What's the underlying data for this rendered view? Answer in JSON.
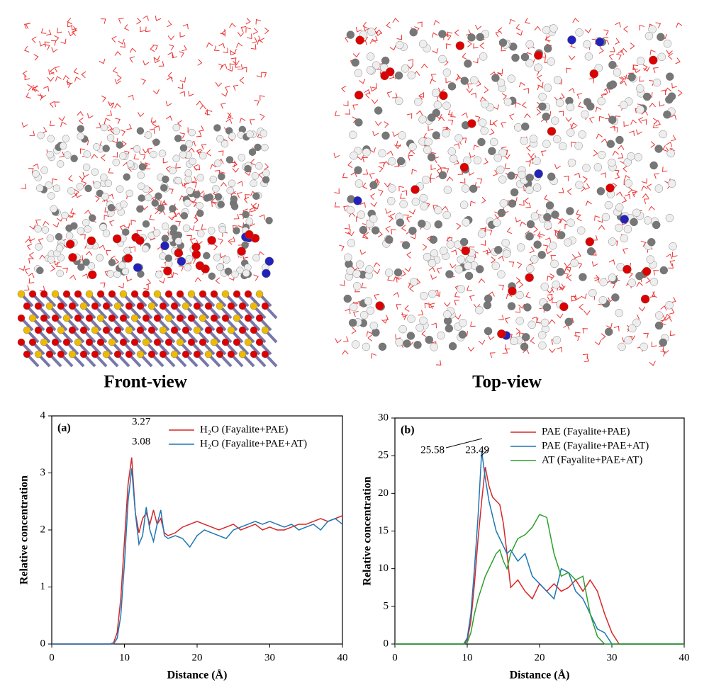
{
  "views": [
    "Front-view",
    "Top-view"
  ],
  "chart_data": [
    {
      "type": "line",
      "panel_label": "(a)",
      "xlabel": "Distance (Å)",
      "ylabel": "Relative concentration",
      "xlim": [
        0,
        40
      ],
      "xticks": [
        0,
        10,
        20,
        30,
        40
      ],
      "ylim": [
        0,
        4
      ],
      "yticks": [
        0,
        1,
        2,
        3,
        4
      ],
      "legend": "upper right",
      "annotations": [
        "3.27",
        "3.08"
      ],
      "x": [
        0,
        8,
        8.5,
        9,
        9.5,
        10,
        10.5,
        11,
        11.5,
        12,
        12.5,
        13,
        13.5,
        14,
        14.5,
        15,
        15.5,
        16,
        17,
        18,
        19,
        20,
        21,
        22,
        23,
        24,
        25,
        26,
        27,
        28,
        29,
        30,
        31,
        32,
        33,
        34,
        35,
        36,
        37,
        38,
        39,
        40
      ],
      "series": [
        {
          "name": "H₂O (Fayalite+PAE)",
          "color": "#d62728",
          "values": [
            0,
            0,
            0.02,
            0.2,
            0.8,
            1.8,
            2.8,
            3.27,
            2.3,
            1.95,
            2.2,
            2.3,
            2.1,
            2.35,
            2.1,
            2.2,
            1.95,
            1.9,
            1.95,
            2.05,
            2.1,
            2.15,
            2.1,
            2.05,
            2.0,
            2.05,
            2.1,
            2.0,
            2.05,
            2.1,
            2.0,
            2.05,
            2.0,
            2.0,
            2.05,
            2.1,
            2.1,
            2.15,
            2.2,
            2.15,
            2.2,
            2.25
          ]
        },
        {
          "name": "H₂O (Fayalite+PAE+AT)",
          "color": "#1f77b4",
          "values": [
            0,
            0,
            0,
            0.1,
            0.5,
            1.4,
            2.5,
            3.08,
            2.3,
            1.75,
            1.9,
            2.4,
            2.0,
            1.8,
            2.1,
            2.35,
            1.9,
            1.85,
            1.9,
            1.85,
            1.7,
            1.9,
            2.0,
            1.95,
            1.9,
            1.85,
            2.0,
            2.05,
            2.1,
            2.15,
            2.1,
            2.15,
            2.1,
            2.05,
            2.1,
            2.0,
            2.05,
            2.1,
            2.0,
            2.15,
            2.2,
            2.1
          ]
        }
      ]
    },
    {
      "type": "line",
      "panel_label": "(b)",
      "xlabel": "Distance (Å)",
      "ylabel": "Relative concentration",
      "xlim": [
        0,
        40
      ],
      "xticks": [
        0,
        10,
        20,
        30,
        40
      ],
      "ylim": [
        0,
        30
      ],
      "yticks": [
        0,
        5,
        10,
        15,
        20,
        25,
        30
      ],
      "legend": "upper right",
      "annotations": [
        "25.58",
        "23.49"
      ],
      "x": [
        0,
        8,
        8.5,
        9,
        9.5,
        10,
        10.5,
        11,
        11.5,
        12,
        12.5,
        13,
        13.5,
        14,
        14.5,
        15,
        15.5,
        16,
        17,
        18,
        19,
        20,
        21,
        22,
        23,
        24,
        25,
        26,
        27,
        28,
        29,
        30,
        31,
        32,
        33,
        34,
        35,
        36,
        37,
        38,
        39,
        40
      ],
      "series": [
        {
          "name": "PAE (Fayalite+PAE)",
          "color": "#d62728",
          "values": [
            0,
            0,
            0,
            0,
            0,
            0.5,
            3,
            8,
            14,
            19,
            23.49,
            21,
            19.5,
            19,
            18.5,
            16,
            12,
            7.5,
            8.5,
            7,
            6,
            8,
            7,
            8,
            7,
            7.5,
            8.5,
            7,
            8.5,
            7,
            4,
            1.5,
            0,
            0,
            0,
            0,
            0,
            0,
            0,
            0,
            0,
            0
          ]
        },
        {
          "name": "PAE (Fayalite+PAE+AT)",
          "color": "#1f77b4",
          "values": [
            0,
            0,
            0,
            0,
            0,
            0.8,
            4,
            10,
            17,
            25.58,
            22,
            19,
            17,
            15,
            14,
            13,
            12,
            12.5,
            11,
            12,
            9,
            8,
            7,
            6,
            10,
            9.5,
            7,
            6,
            4,
            2,
            1.5,
            0,
            0,
            0,
            0,
            0,
            0,
            0,
            0,
            0,
            0,
            0
          ]
        },
        {
          "name": "AT (Fayalite+PAE+AT)",
          "color": "#2ca02c",
          "values": [
            0,
            0,
            0,
            0,
            0,
            0.2,
            1.5,
            4,
            6,
            7.5,
            9,
            10,
            11,
            12,
            12.5,
            11,
            10,
            12,
            14,
            14.5,
            15.5,
            17.2,
            16.8,
            12,
            9,
            9.5,
            8.5,
            9,
            4,
            1,
            0,
            0,
            0,
            0,
            0,
            0,
            0,
            0,
            0,
            0,
            0,
            0
          ]
        }
      ]
    }
  ]
}
